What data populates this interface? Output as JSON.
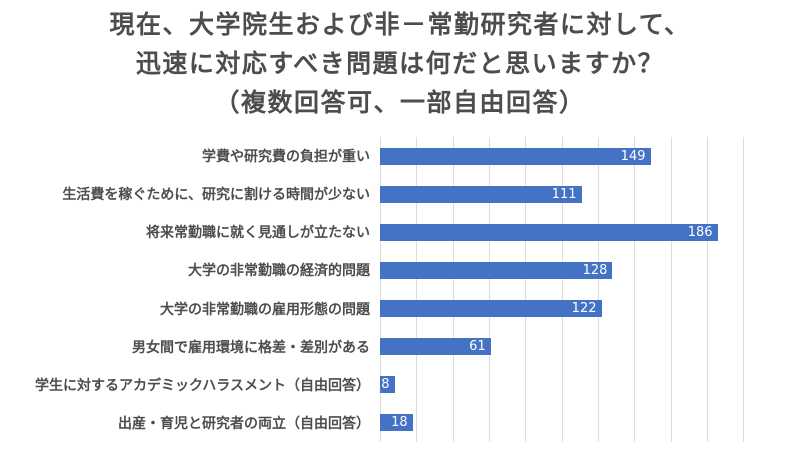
{
  "title": {
    "lines": [
      "現在、大学院生および非－常勤研究者に対して、",
      "迅速に対応すべき問題は何だと思いますか？",
      "（複数回答可、一部自由回答）"
    ]
  },
  "chart_data": {
    "type": "bar",
    "orientation": "horizontal",
    "title": "現在、大学院生および非－常勤研究者に対して、迅速に対応すべき問題は何だと思いますか？（複数回答可、一部自由回答）",
    "categories": [
      "学費や研究費の負担が重い",
      "生活費を稼ぐために、研究に割ける時間が少ない",
      "将来常勤職に就く見通しが立たない",
      "大学の非常勤職の経済的問題",
      "大学の非常勤職の雇用形態の問題",
      "男女間で雇用環境に格差・差別がある",
      "学生に対するアカデミックハラスメント（自由回答）",
      "出産・育児と研究者の両立（自由回答）"
    ],
    "values": [
      149,
      111,
      186,
      128,
      122,
      61,
      8,
      18
    ],
    "xlim": [
      0,
      222
    ],
    "gridline_ticks": [
      0,
      20,
      40,
      60,
      80,
      100,
      120,
      140,
      160,
      180,
      200
    ],
    "grid": true,
    "legend": "none",
    "value_labels": "inside-end",
    "bar_color": "#4472C4",
    "value_label_color": "#FFFFFF",
    "category_label_color": "#4D4D4D",
    "title_color": "#4D4D4D",
    "gridline_color": "#DCDCDC",
    "background_color": "#FFFFFF"
  }
}
